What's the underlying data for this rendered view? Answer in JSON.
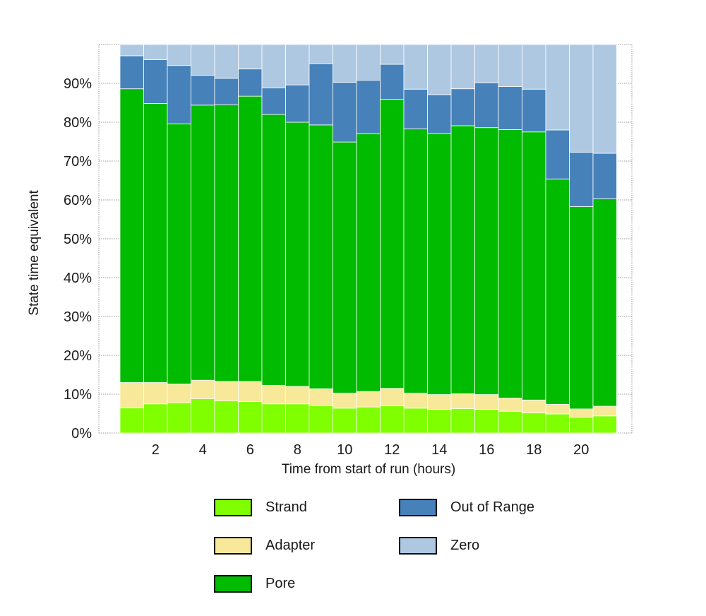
{
  "chart_data": {
    "type": "bar",
    "stacked": true,
    "xlabel": "Time from start of run (hours)",
    "ylabel": "State time equivalent",
    "ylim": [
      0,
      100
    ],
    "y_ticks": [
      "0%",
      "10%",
      "20%",
      "30%",
      "40%",
      "50%",
      "60%",
      "70%",
      "80%",
      "90%"
    ],
    "x_ticks": [
      "2",
      "4",
      "6",
      "8",
      "10",
      "12",
      "14",
      "16",
      "18",
      "20"
    ],
    "categories": [
      "1",
      "2",
      "3",
      "4",
      "5",
      "6",
      "7",
      "8",
      "9",
      "10",
      "11",
      "12",
      "13",
      "14",
      "15",
      "16",
      "17",
      "18",
      "19",
      "20",
      "21"
    ],
    "series": [
      {
        "name": "Strand",
        "color": "#7fff00",
        "values": [
          6.5,
          7.5,
          7.8,
          8.8,
          8.3,
          8.1,
          7.5,
          7.5,
          7.1,
          6.4,
          6.7,
          7.0,
          6.4,
          6.1,
          6.3,
          6.1,
          5.6,
          5.2,
          4.9,
          4.1,
          4.4
        ]
      },
      {
        "name": "Adapter",
        "color": "#f8e89a",
        "values": [
          6.5,
          5.5,
          4.8,
          4.8,
          5.0,
          5.2,
          4.8,
          4.5,
          4.3,
          3.9,
          4.0,
          4.5,
          3.9,
          3.8,
          3.8,
          3.8,
          3.4,
          3.3,
          2.5,
          2.1,
          2.5
        ]
      },
      {
        "name": "Pore",
        "color": "#00bb00",
        "values": [
          75.6,
          71.8,
          67.0,
          70.8,
          71.2,
          73.4,
          69.7,
          68.0,
          67.9,
          64.6,
          66.3,
          74.4,
          68.0,
          67.2,
          69.0,
          68.7,
          69.1,
          69.0,
          58.0,
          52.1,
          53.4
        ]
      },
      {
        "name": "Out of Range",
        "color": "#4682b9",
        "values": [
          8.5,
          11.3,
          15.0,
          7.7,
          6.8,
          7.0,
          6.8,
          9.6,
          15.8,
          15.4,
          13.8,
          9.0,
          10.2,
          10.0,
          9.5,
          11.6,
          11.1,
          11.0,
          12.6,
          14.0,
          11.7
        ]
      },
      {
        "name": "Zero",
        "color": "#afc8e2",
        "values": [
          2.9,
          3.9,
          5.4,
          7.9,
          8.7,
          6.3,
          11.2,
          10.4,
          4.9,
          9.7,
          9.2,
          5.1,
          11.5,
          12.9,
          11.4,
          9.8,
          10.8,
          11.5,
          22.0,
          27.7,
          28.0
        ]
      }
    ],
    "grid": true,
    "legend_position": "bottom"
  }
}
